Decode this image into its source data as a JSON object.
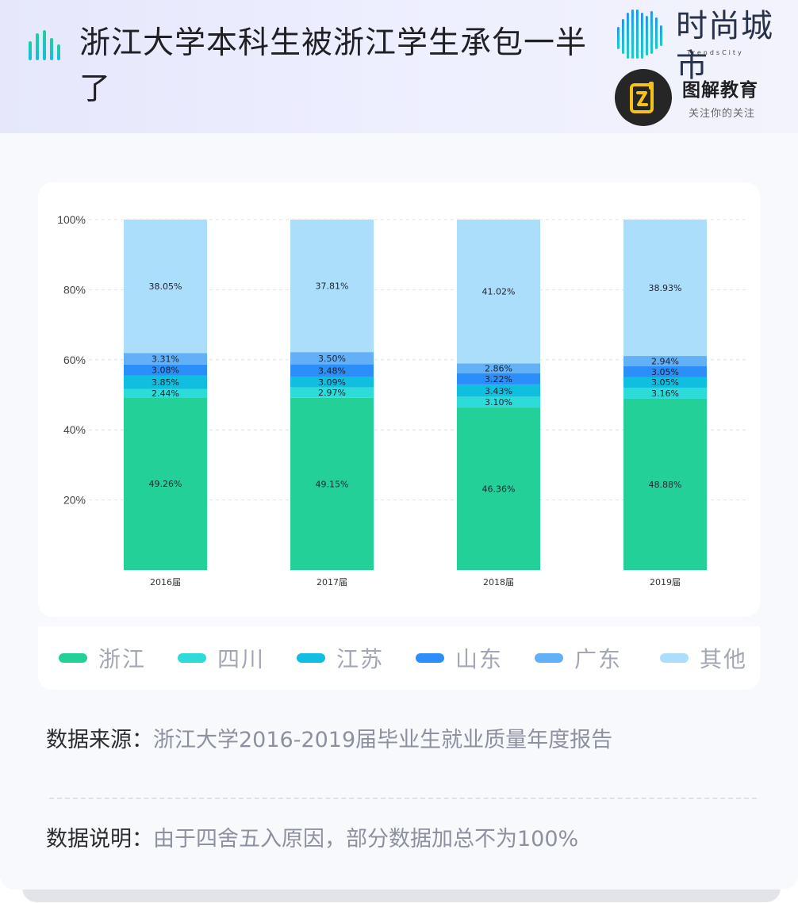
{
  "header": {
    "title": "浙江大学本科生被浙江学生承包一半了",
    "title_icon": "bar-chart-icon"
  },
  "logos": {
    "trendscity": {
      "name": "时尚城市",
      "sub": "TrendsCity",
      "icon": "city-skyline-logo-icon"
    },
    "tujie": {
      "name": "图解教育",
      "sub": "关注你的关注",
      "icon": "tujie-logo-icon"
    }
  },
  "colors": {
    "浙江": "#22d098",
    "四川": "#2ddbd8",
    "江苏": "#10bfe0",
    "山东": "#2c8ef8",
    "广东": "#62b0f6",
    "其他": "#abdefa"
  },
  "chart_data": {
    "type": "bar",
    "stacked": true,
    "categories": [
      "2016届",
      "2017届",
      "2018届",
      "2019届"
    ],
    "series": [
      {
        "name": "浙江",
        "values": [
          49.26,
          49.15,
          46.36,
          48.88
        ]
      },
      {
        "name": "四川",
        "values": [
          2.44,
          2.97,
          3.1,
          3.16
        ]
      },
      {
        "name": "江苏",
        "values": [
          3.85,
          3.09,
          3.43,
          3.05
        ]
      },
      {
        "name": "山东",
        "values": [
          3.08,
          3.48,
          3.22,
          3.05
        ]
      },
      {
        "name": "广东",
        "values": [
          3.31,
          3.5,
          2.86,
          2.94
        ]
      },
      {
        "name": "其他",
        "values": [
          38.05,
          37.81,
          41.02,
          38.93
        ]
      }
    ],
    "data_labels": {
      "浙江": [
        "49.26%",
        "49.15%",
        "46.36%",
        "48.88%"
      ],
      "四川": [
        "2.44%",
        "2.97%",
        "3.10%",
        "3.16%"
      ],
      "江苏": [
        "3.85%",
        "3.09%",
        "3.43%",
        "3.05%"
      ],
      "山东": [
        "3.08%",
        "3.48%",
        "3.22%",
        "3.05%"
      ],
      "广东": [
        "3.31%",
        "3.50%",
        "2.86%",
        "2.94%"
      ],
      "其他": [
        "38.05%",
        "37.81%",
        "41.02%",
        "38.93%"
      ]
    },
    "yticks": [
      20,
      40,
      60,
      80,
      100
    ],
    "ytick_labels": [
      "20%",
      "40%",
      "60%",
      "80%",
      "100%"
    ],
    "ylim": [
      0,
      100
    ],
    "grid": true,
    "legend": "bottom",
    "title": "",
    "xlabel": "",
    "ylabel": ""
  },
  "notes": {
    "source_key": "数据来源：",
    "source_val": "浙江大学2016-2019届毕业生就业质量年度报告",
    "desc_key": "数据说明：",
    "desc_val": "由于四舍五入原因，部分数据加总不为100%"
  }
}
